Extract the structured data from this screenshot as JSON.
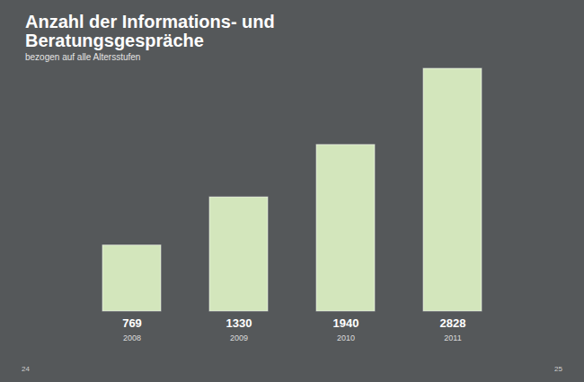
{
  "chart_data": {
    "type": "bar",
    "title": "Anzahl der Informations- und Beratungsgespräche",
    "subtitle": "bezogen auf alle Altersstufen",
    "categories": [
      "2008",
      "2009",
      "2010",
      "2011"
    ],
    "values": [
      769,
      1330,
      1940,
      2828
    ],
    "color": "#d3e6bc",
    "data_labels": true,
    "tick_labels": "x",
    "annotations": [
      "24",
      "25"
    ]
  }
}
